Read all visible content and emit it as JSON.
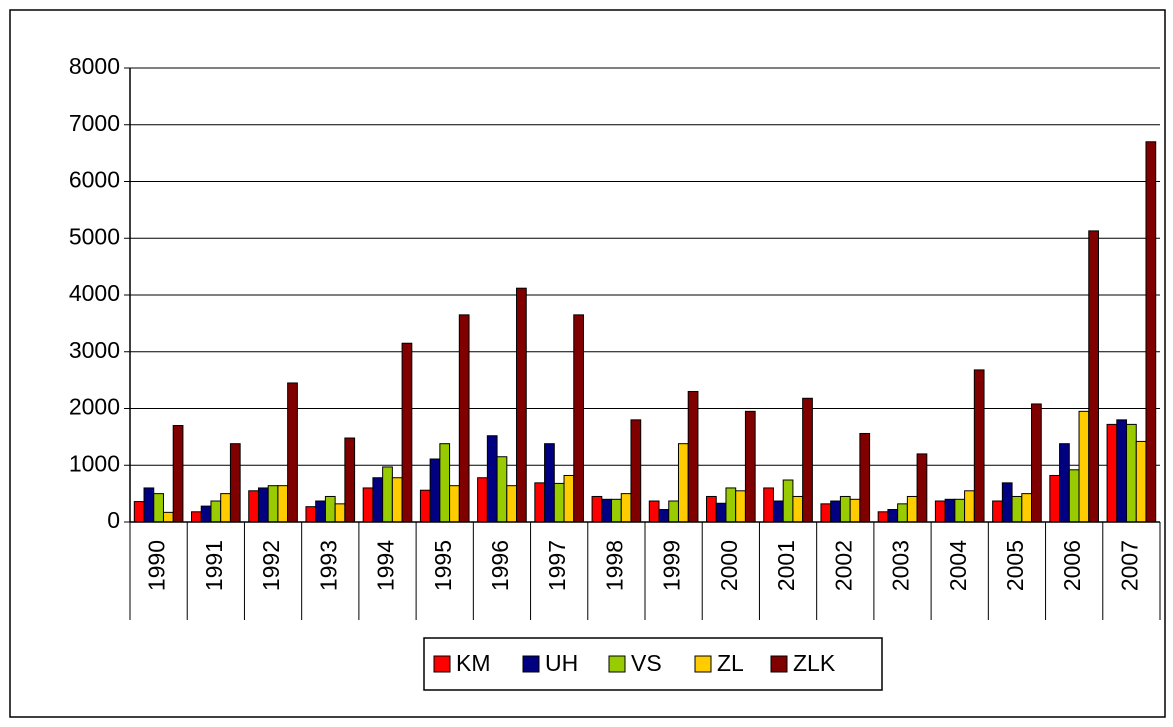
{
  "chart_data": {
    "type": "bar",
    "categories": [
      "1990",
      "1991",
      "1992",
      "1993",
      "1994",
      "1995",
      "1996",
      "1997",
      "1998",
      "1999",
      "2000",
      "2001",
      "2002",
      "2003",
      "2004",
      "2005",
      "2006",
      "2007"
    ],
    "series": [
      {
        "name": "KM",
        "color": "#ff0000",
        "values": [
          360,
          180,
          550,
          270,
          600,
          560,
          780,
          690,
          450,
          370,
          450,
          600,
          320,
          180,
          370,
          370,
          820,
          1720
        ]
      },
      {
        "name": "UH",
        "color": "#000080",
        "values": [
          600,
          280,
          600,
          370,
          780,
          1110,
          1520,
          1380,
          400,
          220,
          330,
          370,
          370,
          220,
          400,
          690,
          1380,
          1800
        ]
      },
      {
        "name": "VS",
        "color": "#99cc00",
        "values": [
          500,
          370,
          640,
          450,
          970,
          1380,
          1150,
          680,
          400,
          370,
          600,
          740,
          450,
          320,
          400,
          450,
          920,
          1720
        ]
      },
      {
        "name": "ZL",
        "color": "#ffcc00",
        "values": [
          170,
          500,
          640,
          320,
          780,
          640,
          640,
          820,
          500,
          1380,
          550,
          450,
          400,
          450,
          550,
          500,
          1950,
          1420
        ]
      },
      {
        "name": "ZLK",
        "color": "#800000",
        "values": [
          1700,
          1380,
          2450,
          1480,
          3150,
          3650,
          4120,
          3650,
          1800,
          2300,
          1950,
          2180,
          1560,
          1200,
          2680,
          2080,
          5130,
          6700
        ]
      }
    ],
    "ylim": [
      0,
      8000
    ],
    "yticks": [
      0,
      1000,
      2000,
      3000,
      4000,
      5000,
      6000,
      7000,
      8000
    ],
    "grid": true,
    "legend": "bottom"
  }
}
